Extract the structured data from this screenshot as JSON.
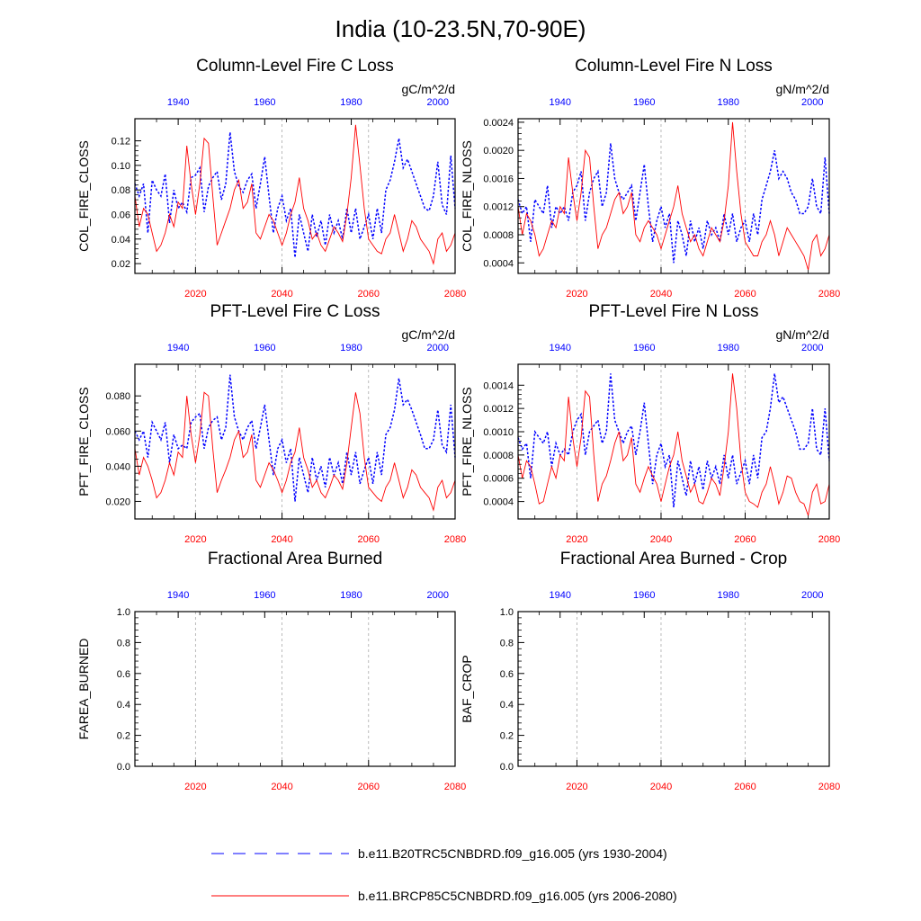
{
  "figure_title": "India (10-23.5N,70-90E)",
  "colors": {
    "series_hist": "#0000ff",
    "series_future": "#ff0000",
    "axis": "#000000",
    "grid": "#aaaaaa"
  },
  "legend": [
    {
      "label": "b.e11.B20TRC5CNBDRD.f09_g16.005 (yrs 1930-2004)",
      "style": "dashed",
      "color": "#0000ff"
    },
    {
      "label": "b.e11.BRCP85C5CNBDRD.f09_g16.005 (yrs 2006-2080)",
      "style": "solid",
      "color": "#ff0000"
    }
  ],
  "chart_data": [
    {
      "type": "line",
      "title": "Column-Level Fire C Loss",
      "units": "gC/m^2/d",
      "ylabel": "COL_FIRE_CLOSS",
      "ylim": [
        0.012,
        0.138
      ],
      "yticks": [
        0.02,
        0.04,
        0.06,
        0.08,
        0.1,
        0.12
      ],
      "ytick_labels": [
        "0.02",
        "0.04",
        "0.06",
        "0.08",
        "0.10",
        "0.12"
      ],
      "x_bottom": {
        "range": [
          2006,
          2080
        ],
        "ticks": [
          2020,
          2040,
          2060,
          2080
        ],
        "labels": [
          "2020",
          "2040",
          "2060",
          "2080"
        ]
      },
      "x_top": {
        "range": [
          1930,
          2004
        ],
        "ticks": [
          1940,
          1960,
          1980,
          2000
        ],
        "labels": [
          "1940",
          "1960",
          "1980",
          "2000"
        ]
      },
      "grid_x": [
        2020,
        2040,
        2060
      ],
      "series": [
        {
          "name": "b.e11.B20TRC5CNBDRD.f09_g16.005",
          "axis": "top",
          "start_year": 1930,
          "values": [
            0.085,
            0.075,
            0.085,
            0.045,
            0.088,
            0.08,
            0.075,
            0.093,
            0.053,
            0.08,
            0.065,
            0.07,
            0.062,
            0.09,
            0.092,
            0.098,
            0.062,
            0.083,
            0.09,
            0.095,
            0.072,
            0.085,
            0.127,
            0.095,
            0.083,
            0.078,
            0.088,
            0.093,
            0.065,
            0.085,
            0.107,
            0.075,
            0.045,
            0.065,
            0.075,
            0.055,
            0.065,
            0.025,
            0.06,
            0.045,
            0.03,
            0.06,
            0.042,
            0.055,
            0.035,
            0.06,
            0.045,
            0.055,
            0.04,
            0.065,
            0.045,
            0.065,
            0.04,
            0.05,
            0.06,
            0.04,
            0.065,
            0.045,
            0.08,
            0.088,
            0.103,
            0.122,
            0.098,
            0.105,
            0.095,
            0.085,
            0.075,
            0.065,
            0.063,
            0.075,
            0.103,
            0.068,
            0.06,
            0.108,
            0.065
          ]
        },
        {
          "name": "b.e11.BRCP85C5CNBDRD.f09_g16.005",
          "axis": "bottom",
          "start_year": 2006,
          "values": [
            0.075,
            0.05,
            0.065,
            0.06,
            0.045,
            0.03,
            0.035,
            0.045,
            0.06,
            0.05,
            0.07,
            0.065,
            0.116,
            0.085,
            0.06,
            0.085,
            0.122,
            0.118,
            0.075,
            0.035,
            0.045,
            0.055,
            0.065,
            0.08,
            0.088,
            0.065,
            0.07,
            0.085,
            0.045,
            0.04,
            0.05,
            0.06,
            0.055,
            0.045,
            0.035,
            0.045,
            0.06,
            0.07,
            0.09,
            0.065,
            0.055,
            0.04,
            0.045,
            0.035,
            0.03,
            0.04,
            0.05,
            0.045,
            0.038,
            0.06,
            0.09,
            0.133,
            0.1,
            0.065,
            0.04,
            0.035,
            0.03,
            0.028,
            0.04,
            0.045,
            0.06,
            0.045,
            0.03,
            0.04,
            0.055,
            0.05,
            0.04,
            0.035,
            0.03,
            0.02,
            0.04,
            0.045,
            0.03,
            0.035,
            0.045
          ]
        }
      ]
    },
    {
      "type": "line",
      "title": "Column-Level Fire N Loss",
      "units": "gN/m^2/d",
      "ylabel": "COL_FIRE_NLOSS",
      "ylim": [
        0.00025,
        0.00245
      ],
      "yticks": [
        0.0004,
        0.0008,
        0.0012,
        0.0016,
        0.002,
        0.0024
      ],
      "ytick_labels": [
        "0.0004",
        "0.0008",
        "0.0012",
        "0.0016",
        "0.0020",
        "0.0024"
      ],
      "x_bottom": {
        "range": [
          2006,
          2080
        ],
        "ticks": [
          2020,
          2040,
          2060,
          2080
        ],
        "labels": [
          "2020",
          "2040",
          "2060",
          "2080"
        ]
      },
      "x_top": {
        "range": [
          1930,
          2004
        ],
        "ticks": [
          1940,
          1960,
          1980,
          2000
        ],
        "labels": [
          "1940",
          "1960",
          "1980",
          "2000"
        ]
      },
      "grid_x": [
        2020,
        2040,
        2060
      ],
      "series": [
        {
          "name": "b.e11.B20TRC5CNBDRD.f09_g16.005",
          "axis": "top",
          "start_year": 1930,
          "values": [
            0.0013,
            0.0011,
            0.0012,
            0.0007,
            0.0013,
            0.0012,
            0.0011,
            0.0015,
            0.0009,
            0.0012,
            0.0011,
            0.0012,
            0.001,
            0.0014,
            0.0015,
            0.0017,
            0.001,
            0.0014,
            0.0016,
            0.0017,
            0.0012,
            0.0014,
            0.0021,
            0.0016,
            0.0014,
            0.0013,
            0.0014,
            0.0015,
            0.001,
            0.0014,
            0.0018,
            0.0012,
            0.0007,
            0.001,
            0.0012,
            0.0009,
            0.0011,
            0.0004,
            0.001,
            0.0008,
            0.0005,
            0.001,
            0.0007,
            0.0009,
            0.0006,
            0.001,
            0.0008,
            0.0009,
            0.0007,
            0.0011,
            0.0008,
            0.0011,
            0.0007,
            0.0009,
            0.001,
            0.0007,
            0.0011,
            0.0008,
            0.0013,
            0.0015,
            0.0017,
            0.002,
            0.0016,
            0.0017,
            0.0016,
            0.0014,
            0.0013,
            0.0011,
            0.0011,
            0.0012,
            0.0016,
            0.0012,
            0.0011,
            0.0019,
            0.0011
          ]
        },
        {
          "name": "b.e11.BRCP85C5CNBDRD.f09_g16.005",
          "axis": "bottom",
          "start_year": 2006,
          "values": [
            0.0012,
            0.0008,
            0.0011,
            0.001,
            0.0008,
            0.0005,
            0.0006,
            0.0008,
            0.001,
            0.0009,
            0.0012,
            0.0011,
            0.0019,
            0.0014,
            0.001,
            0.0014,
            0.002,
            0.0019,
            0.0012,
            0.0006,
            0.0008,
            0.0009,
            0.0011,
            0.0013,
            0.0014,
            0.0011,
            0.0012,
            0.0014,
            0.0008,
            0.0007,
            0.0009,
            0.001,
            0.0009,
            0.0008,
            0.0006,
            0.0008,
            0.001,
            0.0012,
            0.0015,
            0.0011,
            0.0009,
            0.0007,
            0.0008,
            0.0006,
            0.0005,
            0.0007,
            0.0009,
            0.0008,
            0.0007,
            0.001,
            0.0015,
            0.0024,
            0.0017,
            0.0011,
            0.0007,
            0.0006,
            0.0005,
            0.0005,
            0.0007,
            0.0008,
            0.001,
            0.0008,
            0.0005,
            0.0007,
            0.0009,
            0.0008,
            0.0007,
            0.0006,
            0.0005,
            0.0003,
            0.0007,
            0.0008,
            0.0005,
            0.0006,
            0.0008
          ]
        }
      ]
    },
    {
      "type": "line",
      "title": "PFT-Level Fire C Loss",
      "units": "gC/m^2/d",
      "ylabel": "PFT_FIRE_CLOSS",
      "ylim": [
        0.01,
        0.098
      ],
      "yticks": [
        0.02,
        0.04,
        0.06,
        0.08
      ],
      "ytick_labels": [
        "0.020",
        "0.040",
        "0.060",
        "0.080"
      ],
      "x_bottom": {
        "range": [
          2006,
          2080
        ],
        "ticks": [
          2020,
          2040,
          2060,
          2080
        ],
        "labels": [
          "2020",
          "2040",
          "2060",
          "2080"
        ]
      },
      "x_top": {
        "range": [
          1930,
          2004
        ],
        "ticks": [
          1940,
          1960,
          1980,
          2000
        ],
        "labels": [
          "1940",
          "1960",
          "1980",
          "2000"
        ]
      },
      "grid_x": [
        2020,
        2040,
        2060
      ],
      "series": [
        {
          "name": "b.e11.B20TRC5CNBDRD.f09_g16.005",
          "axis": "top",
          "start_year": 1930,
          "values": [
            0.06,
            0.055,
            0.06,
            0.045,
            0.065,
            0.06,
            0.055,
            0.065,
            0.042,
            0.058,
            0.05,
            0.052,
            0.05,
            0.065,
            0.068,
            0.07,
            0.05,
            0.062,
            0.066,
            0.068,
            0.055,
            0.062,
            0.092,
            0.068,
            0.06,
            0.055,
            0.062,
            0.066,
            0.05,
            0.062,
            0.075,
            0.055,
            0.035,
            0.05,
            0.055,
            0.042,
            0.05,
            0.02,
            0.045,
            0.035,
            0.025,
            0.045,
            0.032,
            0.04,
            0.028,
            0.045,
            0.035,
            0.042,
            0.03,
            0.048,
            0.035,
            0.048,
            0.03,
            0.038,
            0.045,
            0.03,
            0.048,
            0.035,
            0.058,
            0.062,
            0.072,
            0.09,
            0.075,
            0.078,
            0.072,
            0.065,
            0.058,
            0.05,
            0.05,
            0.055,
            0.072,
            0.052,
            0.048,
            0.075,
            0.045
          ]
        },
        {
          "name": "b.e11.BRCP85C5CNBDRD.f09_g16.005",
          "axis": "bottom",
          "start_year": 2006,
          "values": [
            0.05,
            0.035,
            0.045,
            0.04,
            0.032,
            0.022,
            0.025,
            0.032,
            0.042,
            0.035,
            0.048,
            0.045,
            0.08,
            0.058,
            0.042,
            0.058,
            0.082,
            0.08,
            0.05,
            0.025,
            0.032,
            0.038,
            0.045,
            0.055,
            0.06,
            0.045,
            0.048,
            0.058,
            0.032,
            0.028,
            0.035,
            0.042,
            0.038,
            0.032,
            0.025,
            0.032,
            0.042,
            0.048,
            0.062,
            0.045,
            0.038,
            0.028,
            0.032,
            0.025,
            0.022,
            0.028,
            0.035,
            0.032,
            0.027,
            0.042,
            0.062,
            0.082,
            0.07,
            0.045,
            0.028,
            0.025,
            0.022,
            0.02,
            0.028,
            0.032,
            0.042,
            0.032,
            0.022,
            0.028,
            0.038,
            0.035,
            0.028,
            0.025,
            0.022,
            0.015,
            0.028,
            0.032,
            0.022,
            0.025,
            0.032
          ]
        }
      ]
    },
    {
      "type": "line",
      "title": "PFT-Level Fire N Loss",
      "units": "gN/m^2/d",
      "ylabel": "PFT_FIRE_NLOSS",
      "ylim": [
        0.00025,
        0.00158
      ],
      "yticks": [
        0.0004,
        0.0006,
        0.0008,
        0.001,
        0.0012,
        0.0014
      ],
      "ytick_labels": [
        "0.0004",
        "0.0006",
        "0.0008",
        "0.0010",
        "0.0012",
        "0.0014"
      ],
      "x_bottom": {
        "range": [
          2006,
          2080
        ],
        "ticks": [
          2020,
          2040,
          2060,
          2080
        ],
        "labels": [
          "2020",
          "2040",
          "2060",
          "2080"
        ]
      },
      "x_top": {
        "range": [
          1930,
          2004
        ],
        "ticks": [
          1940,
          1960,
          1980,
          2000
        ],
        "labels": [
          "1940",
          "1960",
          "1980",
          "2000"
        ]
      },
      "grid_x": [
        2020,
        2040,
        2060
      ],
      "series": [
        {
          "name": "b.e11.B20TRC5CNBDRD.f09_g16.005",
          "axis": "top",
          "start_year": 1930,
          "values": [
            0.00095,
            0.00085,
            0.0009,
            0.0006,
            0.001,
            0.00095,
            0.0009,
            0.001,
            0.0007,
            0.0009,
            0.0008,
            0.00085,
            0.0008,
            0.001,
            0.0011,
            0.00115,
            0.0008,
            0.001,
            0.00105,
            0.0011,
            0.0009,
            0.001,
            0.0015,
            0.0011,
            0.001,
            0.0009,
            0.001,
            0.00105,
            0.0008,
            0.001,
            0.00125,
            0.0009,
            0.00055,
            0.0008,
            0.0009,
            0.0007,
            0.0008,
            0.00035,
            0.00075,
            0.0006,
            0.00045,
            0.00075,
            0.00055,
            0.0007,
            0.0005,
            0.00075,
            0.0006,
            0.0007,
            0.00055,
            0.0008,
            0.0006,
            0.0008,
            0.00055,
            0.00065,
            0.00075,
            0.00055,
            0.0008,
            0.0006,
            0.00095,
            0.001,
            0.0012,
            0.0015,
            0.00125,
            0.0013,
            0.0012,
            0.0011,
            0.001,
            0.00085,
            0.00085,
            0.0009,
            0.0012,
            0.00085,
            0.0008,
            0.0012,
            0.00075
          ]
        },
        {
          "name": "b.e11.BRCP85C5CNBDRD.f09_g16.005",
          "axis": "bottom",
          "start_year": 2006,
          "values": [
            0.0008,
            0.0006,
            0.00075,
            0.0007,
            0.00055,
            0.00038,
            0.0004,
            0.00055,
            0.0007,
            0.0006,
            0.0008,
            0.00075,
            0.0013,
            0.00095,
            0.0007,
            0.00095,
            0.00135,
            0.0013,
            0.0008,
            0.0004,
            0.00055,
            0.00062,
            0.00075,
            0.0009,
            0.001,
            0.00075,
            0.0008,
            0.00095,
            0.00055,
            0.00048,
            0.0006,
            0.0007,
            0.00062,
            0.00055,
            0.0004,
            0.00055,
            0.0007,
            0.0008,
            0.001,
            0.00075,
            0.00062,
            0.00048,
            0.00055,
            0.0004,
            0.00038,
            0.00048,
            0.0006,
            0.00055,
            0.00045,
            0.0007,
            0.001,
            0.0015,
            0.0012,
            0.00075,
            0.00048,
            0.0004,
            0.00038,
            0.00035,
            0.00048,
            0.00055,
            0.0007,
            0.00055,
            0.00038,
            0.00048,
            0.00062,
            0.0006,
            0.00048,
            0.0004,
            0.00038,
            0.00028,
            0.00048,
            0.00055,
            0.00038,
            0.0004,
            0.00055
          ]
        }
      ]
    },
    {
      "type": "line",
      "title": "Fractional Area Burned",
      "units": "",
      "ylabel": "FAREA_BURNED",
      "ylim": [
        0,
        1
      ],
      "yticks": [
        0,
        0.2,
        0.4,
        0.6,
        0.8,
        1.0
      ],
      "ytick_labels": [
        "0.0",
        "0.2",
        "0.4",
        "0.6",
        "0.8",
        "1.0"
      ],
      "x_bottom": {
        "range": [
          2006,
          2080
        ],
        "ticks": [
          2020,
          2040,
          2060,
          2080
        ],
        "labels": [
          "2020",
          "2040",
          "2060",
          "2080"
        ]
      },
      "x_top": {
        "range": [
          1930,
          2004
        ],
        "ticks": [
          1940,
          1960,
          1980,
          2000
        ],
        "labels": [
          "1940",
          "1960",
          "1980",
          "2000"
        ]
      },
      "grid_x": [
        2020,
        2040,
        2060
      ],
      "series": []
    },
    {
      "type": "line",
      "title": "Fractional Area Burned - Crop",
      "units": "",
      "ylabel": "BAF_CROP",
      "ylim": [
        0,
        1
      ],
      "yticks": [
        0,
        0.2,
        0.4,
        0.6,
        0.8,
        1.0
      ],
      "ytick_labels": [
        "0.0",
        "0.2",
        "0.4",
        "0.6",
        "0.8",
        "1.0"
      ],
      "x_bottom": {
        "range": [
          2006,
          2080
        ],
        "ticks": [
          2020,
          2040,
          2060,
          2080
        ],
        "labels": [
          "2020",
          "2040",
          "2060",
          "2080"
        ]
      },
      "x_top": {
        "range": [
          1930,
          2004
        ],
        "ticks": [
          1940,
          1960,
          1980,
          2000
        ],
        "labels": [
          "1940",
          "1960",
          "1980",
          "2000"
        ]
      },
      "grid_x": [
        2020,
        2040,
        2060
      ],
      "series": []
    }
  ]
}
